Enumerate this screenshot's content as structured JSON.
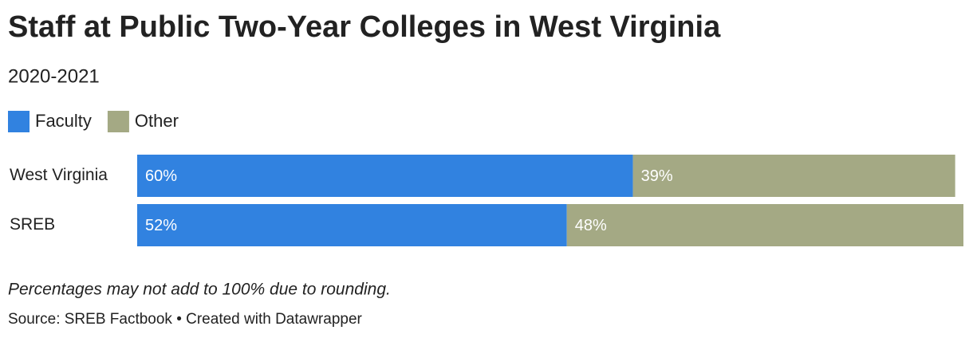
{
  "chart_data": {
    "type": "stacked-bar-horizontal",
    "title": "Staff at Public Two-Year Colleges in West Virginia",
    "subtitle": "2020-2021",
    "categories": [
      "West Virginia",
      "SREB"
    ],
    "series": [
      {
        "name": "Faculty",
        "color": "#3182e0",
        "values": [
          60,
          52
        ],
        "value_labels": [
          "60%",
          "52%"
        ]
      },
      {
        "name": "Other",
        "color": "#a4a984",
        "values": [
          39,
          48
        ],
        "value_labels": [
          "39%",
          "48%"
        ]
      }
    ],
    "xlim": [
      0,
      100
    ],
    "notes": "Percentages may not add to 100% due to rounding.",
    "source": "Source: SREB Factbook • Created with Datawrapper"
  }
}
